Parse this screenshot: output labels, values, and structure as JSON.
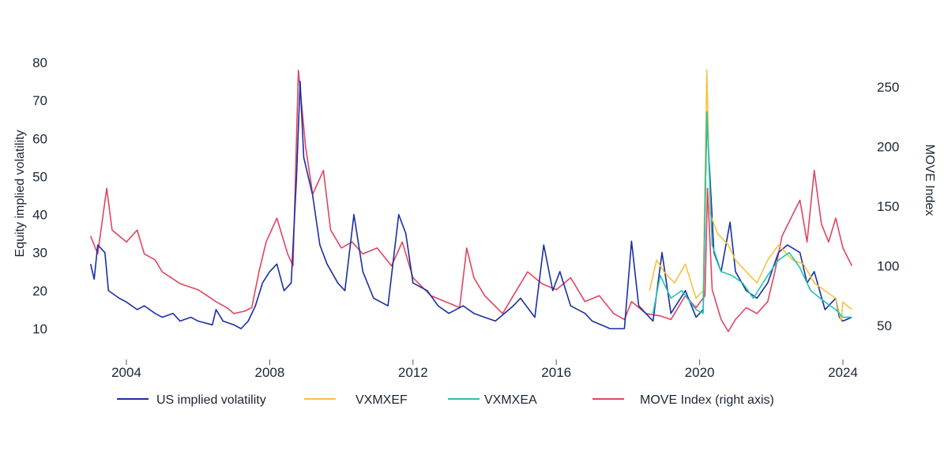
{
  "chart_data": {
    "type": "line",
    "title": "",
    "xlabel": "",
    "ylabel": "Equity implied volatility",
    "y2label": "MOVE Index",
    "xlim": [
      2003,
      2024.3
    ],
    "ylim": [
      5,
      82
    ],
    "y2lim": [
      36,
      272
    ],
    "x_ticks": [
      "2004",
      "2008",
      "2012",
      "2016",
      "2020",
      "2024"
    ],
    "y_ticks": [
      "10",
      "20",
      "30",
      "40",
      "50",
      "60",
      "70",
      "80"
    ],
    "y2_ticks": [
      "50",
      "100",
      "150",
      "200",
      "250"
    ],
    "legend_position": "bottom",
    "grid": false,
    "series": [
      {
        "name": "US implied volatility",
        "axis": "left",
        "color": "#1a2ea6",
        "points": [
          [
            2003.0,
            27
          ],
          [
            2003.1,
            23
          ],
          [
            2003.2,
            32
          ],
          [
            2003.4,
            30
          ],
          [
            2003.5,
            20
          ],
          [
            2003.8,
            18
          ],
          [
            2004.0,
            17
          ],
          [
            2004.3,
            15
          ],
          [
            2004.5,
            16
          ],
          [
            2004.8,
            14
          ],
          [
            2005.0,
            13
          ],
          [
            2005.3,
            14
          ],
          [
            2005.5,
            12
          ],
          [
            2005.8,
            13
          ],
          [
            2006.0,
            12
          ],
          [
            2006.4,
            11
          ],
          [
            2006.5,
            15
          ],
          [
            2006.7,
            12
          ],
          [
            2007.0,
            11
          ],
          [
            2007.2,
            10
          ],
          [
            2007.4,
            12
          ],
          [
            2007.6,
            16
          ],
          [
            2007.8,
            22
          ],
          [
            2008.0,
            25
          ],
          [
            2008.2,
            27
          ],
          [
            2008.4,
            20
          ],
          [
            2008.6,
            22
          ],
          [
            2008.75,
            50
          ],
          [
            2008.85,
            75
          ],
          [
            2008.95,
            55
          ],
          [
            2009.2,
            45
          ],
          [
            2009.4,
            32
          ],
          [
            2009.6,
            27
          ],
          [
            2009.9,
            22
          ],
          [
            2010.1,
            20
          ],
          [
            2010.35,
            40
          ],
          [
            2010.6,
            25
          ],
          [
            2010.9,
            18
          ],
          [
            2011.3,
            16
          ],
          [
            2011.6,
            40
          ],
          [
            2011.8,
            35
          ],
          [
            2012.0,
            22
          ],
          [
            2012.4,
            20
          ],
          [
            2012.7,
            16
          ],
          [
            2013.0,
            14
          ],
          [
            2013.4,
            16
          ],
          [
            2013.7,
            14
          ],
          [
            2014.0,
            13
          ],
          [
            2014.3,
            12
          ],
          [
            2014.8,
            16
          ],
          [
            2015.0,
            18
          ],
          [
            2015.4,
            13
          ],
          [
            2015.65,
            32
          ],
          [
            2015.9,
            20
          ],
          [
            2016.1,
            25
          ],
          [
            2016.4,
            16
          ],
          [
            2016.8,
            14
          ],
          [
            2017.0,
            12
          ],
          [
            2017.5,
            10
          ],
          [
            2017.9,
            10
          ],
          [
            2018.1,
            33
          ],
          [
            2018.3,
            16
          ],
          [
            2018.7,
            12
          ],
          [
            2018.95,
            30
          ],
          [
            2019.2,
            14
          ],
          [
            2019.6,
            20
          ],
          [
            2019.9,
            13
          ],
          [
            2020.1,
            15
          ],
          [
            2020.2,
            66
          ],
          [
            2020.4,
            30
          ],
          [
            2020.6,
            25
          ],
          [
            2020.85,
            38
          ],
          [
            2021.0,
            25
          ],
          [
            2021.3,
            20
          ],
          [
            2021.6,
            18
          ],
          [
            2021.9,
            22
          ],
          [
            2022.2,
            30
          ],
          [
            2022.45,
            32
          ],
          [
            2022.8,
            30
          ],
          [
            2023.0,
            22
          ],
          [
            2023.2,
            25
          ],
          [
            2023.5,
            15
          ],
          [
            2023.8,
            18
          ],
          [
            2023.9,
            13
          ],
          [
            2024.0,
            12
          ],
          [
            2024.25,
            13
          ]
        ]
      },
      {
        "name": "VXMXEF",
        "axis": "left",
        "color": "#f6c23e",
        "points": [
          [
            2018.6,
            20
          ],
          [
            2018.8,
            28
          ],
          [
            2019.0,
            25
          ],
          [
            2019.3,
            22
          ],
          [
            2019.6,
            27
          ],
          [
            2019.9,
            18
          ],
          [
            2020.1,
            20
          ],
          [
            2020.2,
            78
          ],
          [
            2020.3,
            40
          ],
          [
            2020.5,
            35
          ],
          [
            2020.8,
            32
          ],
          [
            2021.0,
            28
          ],
          [
            2021.3,
            25
          ],
          [
            2021.6,
            22
          ],
          [
            2021.9,
            28
          ],
          [
            2022.2,
            32
          ],
          [
            2022.6,
            28
          ],
          [
            2022.9,
            27
          ],
          [
            2023.2,
            22
          ],
          [
            2023.5,
            20
          ],
          [
            2023.8,
            18
          ],
          [
            2023.95,
            12
          ],
          [
            2024.0,
            17
          ],
          [
            2024.25,
            15
          ]
        ]
      },
      {
        "name": "VXMXEA",
        "axis": "left",
        "color": "#22c3b0",
        "points": [
          [
            2018.7,
            14
          ],
          [
            2018.9,
            24
          ],
          [
            2019.2,
            18
          ],
          [
            2019.5,
            20
          ],
          [
            2019.9,
            15
          ],
          [
            2020.1,
            14
          ],
          [
            2020.2,
            67
          ],
          [
            2020.35,
            32
          ],
          [
            2020.6,
            25
          ],
          [
            2020.9,
            24
          ],
          [
            2021.2,
            22
          ],
          [
            2021.5,
            18
          ],
          [
            2021.9,
            24
          ],
          [
            2022.2,
            28
          ],
          [
            2022.5,
            30
          ],
          [
            2022.8,
            26
          ],
          [
            2023.1,
            20
          ],
          [
            2023.5,
            17
          ],
          [
            2023.8,
            15
          ],
          [
            2024.0,
            13
          ],
          [
            2024.25,
            13
          ]
        ]
      },
      {
        "name": "MOVE Index (right axis)",
        "axis": "right",
        "color": "#e2445f",
        "points": [
          [
            2003.0,
            125
          ],
          [
            2003.2,
            110
          ],
          [
            2003.45,
            165
          ],
          [
            2003.6,
            130
          ],
          [
            2004.0,
            120
          ],
          [
            2004.3,
            130
          ],
          [
            2004.5,
            110
          ],
          [
            2004.8,
            105
          ],
          [
            2005.0,
            95
          ],
          [
            2005.5,
            85
          ],
          [
            2006.0,
            80
          ],
          [
            2006.5,
            70
          ],
          [
            2006.8,
            65
          ],
          [
            2007.0,
            60
          ],
          [
            2007.3,
            62
          ],
          [
            2007.5,
            65
          ],
          [
            2007.7,
            95
          ],
          [
            2007.9,
            120
          ],
          [
            2008.2,
            140
          ],
          [
            2008.5,
            110
          ],
          [
            2008.65,
            100
          ],
          [
            2008.8,
            264
          ],
          [
            2009.0,
            200
          ],
          [
            2009.2,
            160
          ],
          [
            2009.5,
            180
          ],
          [
            2009.7,
            130
          ],
          [
            2010.0,
            115
          ],
          [
            2010.3,
            120
          ],
          [
            2010.6,
            110
          ],
          [
            2011.0,
            115
          ],
          [
            2011.4,
            100
          ],
          [
            2011.7,
            120
          ],
          [
            2012.0,
            90
          ],
          [
            2012.5,
            75
          ],
          [
            2012.9,
            70
          ],
          [
            2013.3,
            65
          ],
          [
            2013.5,
            115
          ],
          [
            2013.7,
            90
          ],
          [
            2014.0,
            75
          ],
          [
            2014.5,
            60
          ],
          [
            2014.9,
            80
          ],
          [
            2015.2,
            95
          ],
          [
            2015.6,
            85
          ],
          [
            2016.0,
            80
          ],
          [
            2016.4,
            90
          ],
          [
            2016.8,
            70
          ],
          [
            2017.2,
            75
          ],
          [
            2017.6,
            60
          ],
          [
            2017.9,
            55
          ],
          [
            2018.1,
            70
          ],
          [
            2018.5,
            60
          ],
          [
            2018.9,
            58
          ],
          [
            2019.2,
            55
          ],
          [
            2019.6,
            75
          ],
          [
            2019.9,
            65
          ],
          [
            2020.15,
            75
          ],
          [
            2020.22,
            165
          ],
          [
            2020.35,
            80
          ],
          [
            2020.6,
            55
          ],
          [
            2020.8,
            45
          ],
          [
            2021.0,
            55
          ],
          [
            2021.3,
            65
          ],
          [
            2021.6,
            60
          ],
          [
            2021.9,
            70
          ],
          [
            2022.1,
            95
          ],
          [
            2022.3,
            125
          ],
          [
            2022.55,
            140
          ],
          [
            2022.8,
            155
          ],
          [
            2023.0,
            120
          ],
          [
            2023.2,
            180
          ],
          [
            2023.4,
            135
          ],
          [
            2023.6,
            120
          ],
          [
            2023.8,
            140
          ],
          [
            2024.0,
            115
          ],
          [
            2024.25,
            100
          ]
        ]
      }
    ]
  }
}
